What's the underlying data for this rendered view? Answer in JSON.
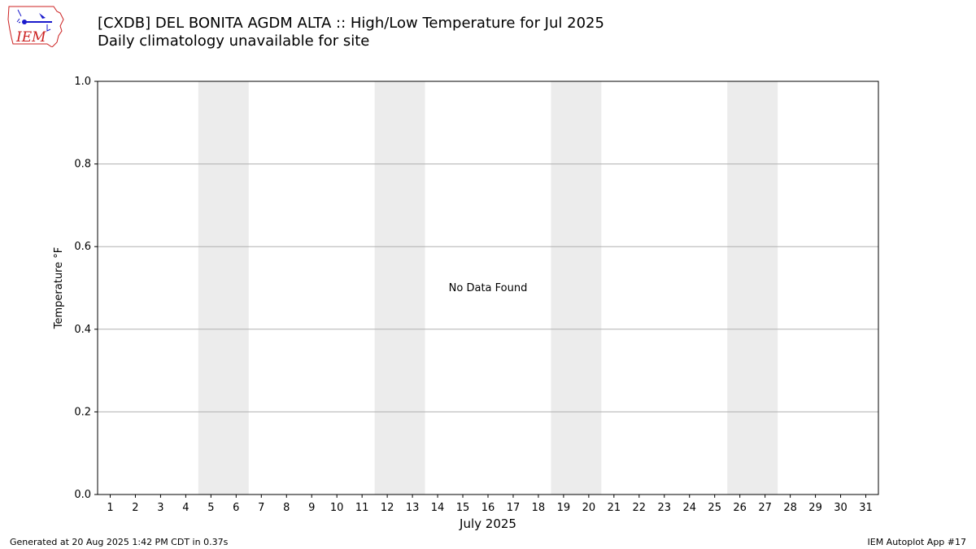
{
  "header": {
    "title": "[CXDB] DEL BONITA AGDM  ALTA :: High/Low Temperature for Jul 2025",
    "subtitle": "Daily climatology unavailable for site",
    "logo_text": "IEM"
  },
  "footer": {
    "generated": "Generated at 20 Aug 2025 1:42 PM CDT in 0.37s",
    "app": "IEM Autoplot App #17"
  },
  "colors": {
    "weekend_band": "#ececec",
    "grid": "#b0b0b0",
    "axis": "#000000",
    "logo_red": "#cc2222",
    "logo_blue": "#1a1acc"
  },
  "chart_data": {
    "type": "bar",
    "title": "[CXDB] DEL BONITA AGDM  ALTA :: High/Low Temperature for Jul 2025",
    "subtitle": "Daily climatology unavailable for site",
    "xlabel": "July 2025",
    "ylabel": "Temperature °F",
    "categories": [
      "1",
      "2",
      "3",
      "4",
      "5",
      "6",
      "7",
      "8",
      "9",
      "10",
      "11",
      "12",
      "13",
      "14",
      "15",
      "16",
      "17",
      "18",
      "19",
      "20",
      "21",
      "22",
      "23",
      "24",
      "25",
      "26",
      "27",
      "28",
      "29",
      "30",
      "31"
    ],
    "series": [],
    "ylim": [
      0.0,
      1.0
    ],
    "yticks": [
      "0.0",
      "0.2",
      "0.4",
      "0.6",
      "0.8",
      "1.0"
    ],
    "xlim": [
      0.5,
      31.5
    ],
    "grid": "horizontal",
    "weekend_bands": [
      [
        4.5,
        6.5
      ],
      [
        11.5,
        13.5
      ],
      [
        18.5,
        20.5
      ],
      [
        25.5,
        27.5
      ]
    ],
    "annotation": "No Data Found"
  }
}
